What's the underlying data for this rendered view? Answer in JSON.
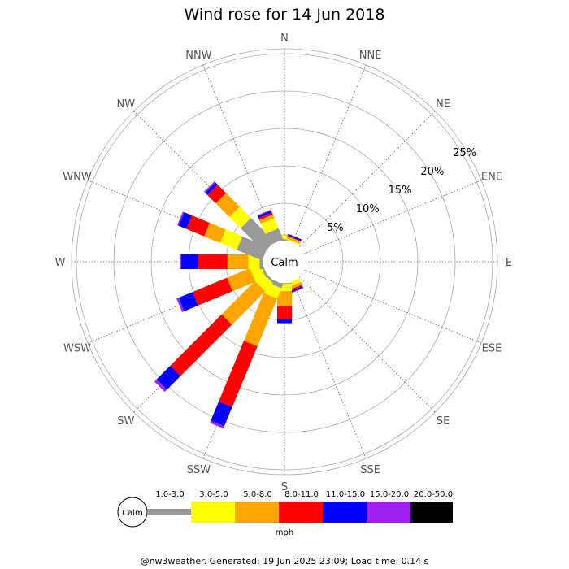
{
  "chart_data": {
    "type": "wind-rose",
    "title": "Wind rose for 14 Jun 2018",
    "directions": [
      "N",
      "NNE",
      "NE",
      "ENE",
      "E",
      "ESE",
      "SE",
      "SSE",
      "S",
      "SSW",
      "SW",
      "WSW",
      "W",
      "WNW",
      "NW",
      "NNW"
    ],
    "ring_labels": [
      "5%",
      "10%",
      "15%",
      "20%",
      "25%"
    ],
    "ring_values": [
      5,
      10,
      15,
      20,
      25
    ],
    "center_label": "Calm",
    "speed_bins": [
      {
        "label": "1.0-3.0",
        "color": "#999999"
      },
      {
        "label": "3.0-5.0",
        "color": "#ffff00"
      },
      {
        "label": "5.0-8.0",
        "color": "#ffa500"
      },
      {
        "label": "8.0-11.0",
        "color": "#ff0000"
      },
      {
        "label": "11.0-15.0",
        "color": "#0000ff"
      },
      {
        "label": "15.0-20.0",
        "color": "#a020f0"
      },
      {
        "label": "20.0-50.0",
        "color": "#000000"
      }
    ],
    "units": "mph",
    "percent_by_direction": [
      {
        "dir": "N",
        "values": [
          0.2,
          0.5,
          0.1,
          0.0,
          0.0,
          0.0,
          0.0
        ]
      },
      {
        "dir": "NNE",
        "values": [
          0.0,
          0.2,
          0.3,
          0.1,
          0.2,
          0.0,
          0.0
        ]
      },
      {
        "dir": "NE",
        "values": [
          0.0,
          0.0,
          0.0,
          0.0,
          0.0,
          0.0,
          0.0
        ]
      },
      {
        "dir": "ENE",
        "values": [
          0.0,
          0.0,
          0.0,
          0.0,
          0.0,
          0.0,
          0.0
        ]
      },
      {
        "dir": "E",
        "values": [
          0.0,
          0.0,
          0.0,
          0.0,
          0.0,
          0.0,
          0.0
        ]
      },
      {
        "dir": "ESE",
        "values": [
          0.0,
          0.0,
          0.0,
          0.0,
          0.0,
          0.0,
          0.0
        ]
      },
      {
        "dir": "SE",
        "values": [
          0.0,
          0.0,
          0.0,
          0.0,
          0.0,
          0.0,
          0.0
        ]
      },
      {
        "dir": "SSE",
        "values": [
          0.0,
          0.5,
          0.4,
          0.2,
          0.2,
          0.1,
          0.0
        ]
      },
      {
        "dir": "S",
        "values": [
          0.1,
          1.0,
          2.0,
          1.7,
          0.6,
          0.0,
          0.0
        ]
      },
      {
        "dir": "SSW",
        "values": [
          0.6,
          1.5,
          6.9,
          8.8,
          2.8,
          0.3,
          0.0
        ]
      },
      {
        "dir": "SW",
        "values": [
          0.3,
          1.5,
          6.3,
          9.7,
          2.6,
          0.4,
          0.0
        ]
      },
      {
        "dir": "WSW",
        "values": [
          0.3,
          1.5,
          3.3,
          5.0,
          2.0,
          0.3,
          0.0
        ]
      },
      {
        "dir": "W",
        "values": [
          0.5,
          1.5,
          2.8,
          4.0,
          2.2,
          0.2,
          0.0
        ]
      },
      {
        "dir": "WNW",
        "values": [
          3.7,
          2.4,
          2.3,
          2.6,
          1.1,
          0.2,
          0.0
        ]
      },
      {
        "dir": "NW",
        "values": [
          4.5,
          2.1,
          2.6,
          1.6,
          0.4,
          0.2,
          0.0
        ]
      },
      {
        "dir": "NNW",
        "values": [
          1.6,
          1.5,
          0.5,
          0.3,
          0.3,
          0.1,
          0.0
        ]
      }
    ]
  },
  "footer": "@nw3weather. Generated: 19 Jun 2025 23:09; Load time: 0.14 s"
}
